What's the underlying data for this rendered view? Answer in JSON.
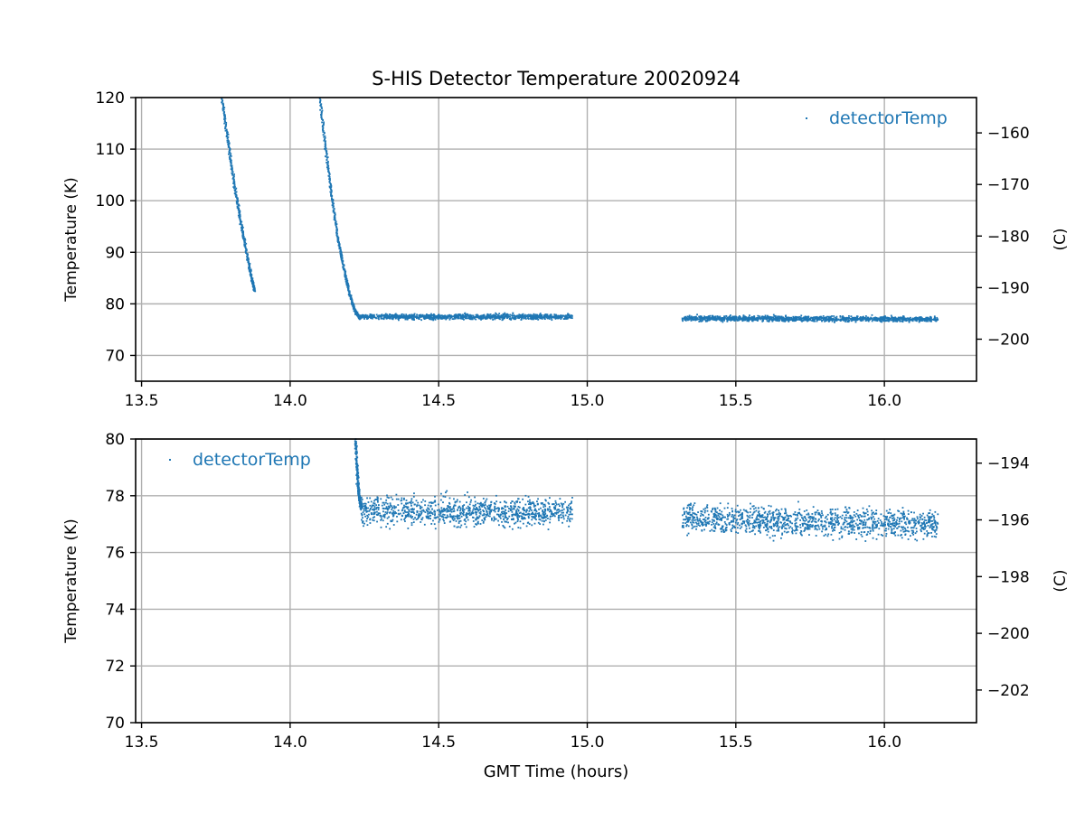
{
  "title": "S-HIS Detector Temperature 20020924",
  "colors": {
    "series": "#1f77b4",
    "grid": "#b0b0b0",
    "axes": "#000000"
  },
  "chart_data": [
    {
      "type": "scatter",
      "ylabel": "Temperature (K)",
      "y2label": "(C)",
      "xlim": [
        13.48,
        16.31
      ],
      "ylim": [
        65,
        120
      ],
      "y2lim": [
        -208.15,
        -153.15
      ],
      "xticks": [
        13.5,
        14.0,
        14.5,
        15.0,
        15.5,
        16.0
      ],
      "xtick_labels": [
        "13.5",
        "14.0",
        "14.5",
        "15.0",
        "15.5",
        "16.0"
      ],
      "yticks": [
        70,
        80,
        90,
        100,
        110,
        120
      ],
      "ytick_labels": [
        "70",
        "80",
        "90",
        "100",
        "110",
        "120"
      ],
      "y2ticks": [
        -200,
        -190,
        -180,
        -170,
        -160
      ],
      "y2tick_labels": [
        "−200",
        "−190",
        "−180",
        "−170",
        "−160"
      ],
      "grid": true,
      "legend": {
        "position": "top-right",
        "entries": [
          "detectorTemp"
        ]
      },
      "series": [
        {
          "name": "detectorTemp",
          "segments": [
            {
              "x": [
                13.77,
                13.79,
                13.81,
                13.83,
                13.85,
                13.87,
                13.88
              ],
              "y": [
                120,
                112,
                104,
                97,
                91,
                85,
                82.5
              ]
            },
            {
              "x": [
                14.1,
                14.12,
                14.14,
                14.16,
                14.18,
                14.2,
                14.22,
                14.23
              ],
              "y": [
                120,
                110,
                101,
                93,
                87,
                82,
                78.5,
                77.5
              ]
            },
            {
              "x": [
                14.23,
                14.95
              ],
              "y": [
                77.5,
                77.5
              ],
              "band": 0.9
            },
            {
              "x": [
                15.32,
                16.18
              ],
              "y": [
                77.2,
                77.0
              ],
              "band": 0.9
            }
          ]
        }
      ]
    },
    {
      "type": "scatter",
      "xlabel": "GMT Time (hours)",
      "ylabel": "Temperature (K)",
      "y2label": "(C)",
      "xlim": [
        13.48,
        16.31
      ],
      "ylim": [
        70,
        80
      ],
      "y2lim": [
        -203.15,
        -193.15
      ],
      "xticks": [
        13.5,
        14.0,
        14.5,
        15.0,
        15.5,
        16.0
      ],
      "xtick_labels": [
        "13.5",
        "14.0",
        "14.5",
        "15.0",
        "15.5",
        "16.0"
      ],
      "yticks": [
        70,
        72,
        74,
        76,
        78,
        80
      ],
      "ytick_labels": [
        "70",
        "72",
        "74",
        "76",
        "78",
        "80"
      ],
      "y2ticks": [
        -202,
        -200,
        -198,
        -196,
        -194
      ],
      "y2tick_labels": [
        "−202",
        "−200",
        "−198",
        "−196",
        "−194"
      ],
      "grid": true,
      "legend": {
        "position": "top-left",
        "entries": [
          "detectorTemp"
        ]
      },
      "series": [
        {
          "name": "detectorTemp",
          "segments": [
            {
              "x": [
                14.22,
                14.225,
                14.23,
                14.235,
                14.24
              ],
              "y": [
                80,
                79.0,
                78.2,
                77.8,
                77.6
              ]
            },
            {
              "x": [
                14.24,
                14.95
              ],
              "y": [
                77.5,
                77.4
              ],
              "band": 0.9
            },
            {
              "x": [
                15.32,
                16.18
              ],
              "y": [
                77.2,
                77.0
              ],
              "band": 0.9
            }
          ]
        }
      ]
    }
  ]
}
